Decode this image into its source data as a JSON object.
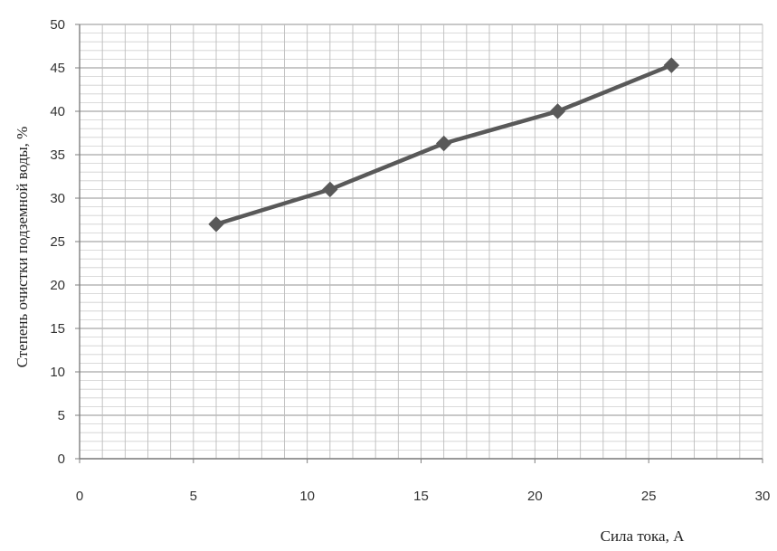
{
  "chart_data": {
    "type": "line",
    "title": "",
    "xlabel": "Сила тока, А",
    "ylabel": "Степень очистки подземной воды, %",
    "xlim": [
      0,
      30
    ],
    "ylim": [
      0,
      50
    ],
    "xticks": [
      0,
      5,
      10,
      15,
      20,
      25,
      30
    ],
    "yticks": [
      0,
      5,
      10,
      15,
      20,
      25,
      30,
      35,
      40,
      45,
      50
    ],
    "grid": true,
    "legend": "none",
    "series": [
      {
        "x": [
          6,
          11,
          16,
          21,
          26
        ],
        "values": [
          27,
          31,
          36.3,
          40,
          45.3
        ],
        "color": "#595959",
        "marker": "diamond"
      }
    ]
  }
}
